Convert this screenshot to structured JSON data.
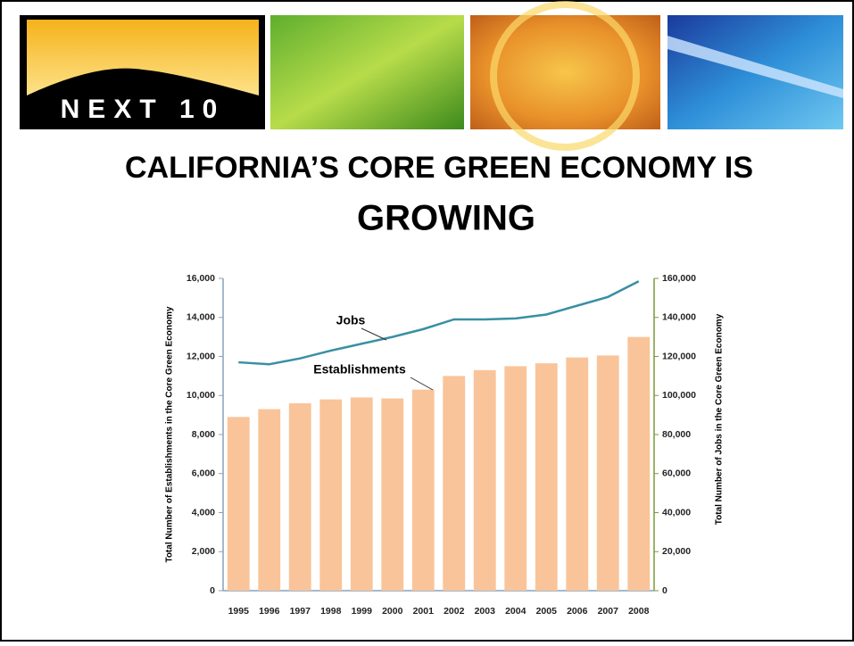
{
  "slide": {
    "logo": "NEXT 10",
    "title_lines": [
      "CALIFORNIA’S CORE GREEN ECONOMY IS",
      "GROWING"
    ]
  },
  "chart_data": {
    "type": "combo",
    "categories": [
      "1995",
      "1996",
      "1997",
      "1998",
      "1999",
      "2000",
      "2001",
      "2002",
      "2003",
      "2004",
      "2005",
      "2006",
      "2007",
      "2008"
    ],
    "series": [
      {
        "name": "Establishments",
        "kind": "bar",
        "color": "#f9c49a",
        "values": [
          8900,
          9300,
          9600,
          9800,
          9900,
          9850,
          10300,
          11000,
          11300,
          11500,
          11650,
          11950,
          12050,
          13000
        ]
      },
      {
        "name": "Jobs",
        "kind": "line",
        "axis": "y2",
        "color": "#3a8fa3",
        "values": [
          117000,
          116000,
          119000,
          123000,
          126500,
          130000,
          134000,
          139000,
          139000,
          139500,
          141500,
          146000,
          150500,
          158500
        ]
      }
    ],
    "ylabel": "Total Number of Establishments in the Core Green Economy",
    "y2label": "Total Number of Jobs in the Core Green Economy",
    "ylim": [
      0,
      16000
    ],
    "yticks": [
      0,
      {
        "value": 2000,
        "label": "2,000"
      },
      {
        "value": 4000,
        "label": "4,000"
      },
      {
        "value": 6000,
        "label": "6,000"
      },
      {
        "value": 8000,
        "label": "8,000"
      },
      {
        "value": 10000,
        "label": "10,000"
      },
      {
        "value": 12000,
        "label": "12,000"
      },
      {
        "value": 14000,
        "label": "14,000"
      },
      {
        "value": 16000,
        "label": "16,000"
      }
    ],
    "y2lim": [
      0,
      160000
    ],
    "y2ticks": [
      0,
      {
        "value": 20000,
        "label": "20,000"
      },
      {
        "value": 40000,
        "label": "40,000"
      },
      {
        "value": 60000,
        "label": "60,000"
      },
      {
        "value": 80000,
        "label": "80,000"
      },
      {
        "value": 100000,
        "label": "100,000"
      },
      {
        "value": 120000,
        "label": "120,000"
      },
      {
        "value": 140000,
        "label": "140,000"
      },
      {
        "value": 160000,
        "label": "160,000"
      }
    ]
  }
}
